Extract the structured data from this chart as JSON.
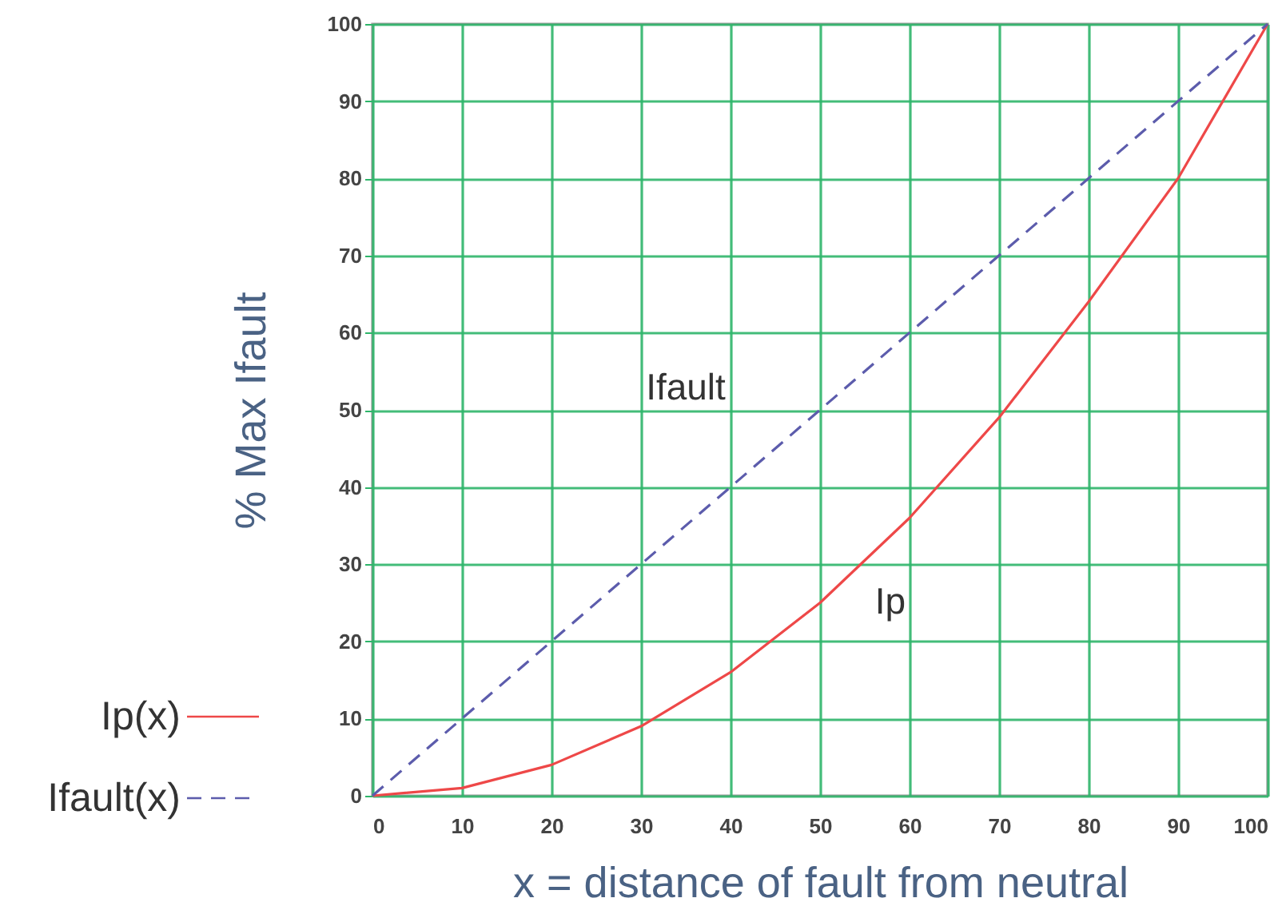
{
  "chart_data": {
    "type": "line",
    "xlabel": "x = distance of fault from neutral",
    "ylabel": "% Max Ifault",
    "x": [
      0,
      10,
      20,
      30,
      40,
      50,
      60,
      70,
      80,
      90,
      100
    ],
    "series": [
      {
        "name": "Ip(x)",
        "color": "#ee4848",
        "line_style": "solid",
        "values": [
          0,
          1,
          4,
          9,
          16,
          25,
          36,
          49,
          64,
          80,
          100
        ]
      },
      {
        "name": "Ifault(x)",
        "color": "#5c5cac",
        "line_style": "dashed",
        "values": [
          0,
          10,
          20,
          30,
          40,
          50,
          60,
          70,
          80,
          90,
          100
        ]
      }
    ],
    "xlim": [
      0,
      100
    ],
    "ylim": [
      0,
      100
    ],
    "xticks": [
      0,
      10,
      20,
      30,
      40,
      50,
      60,
      70,
      80,
      90,
      100
    ],
    "yticks": [
      0,
      10,
      20,
      30,
      40,
      50,
      60,
      70,
      80,
      90,
      100
    ],
    "grid": true,
    "legend": "left",
    "annotations": [
      "Ifault",
      "Ip"
    ]
  }
}
